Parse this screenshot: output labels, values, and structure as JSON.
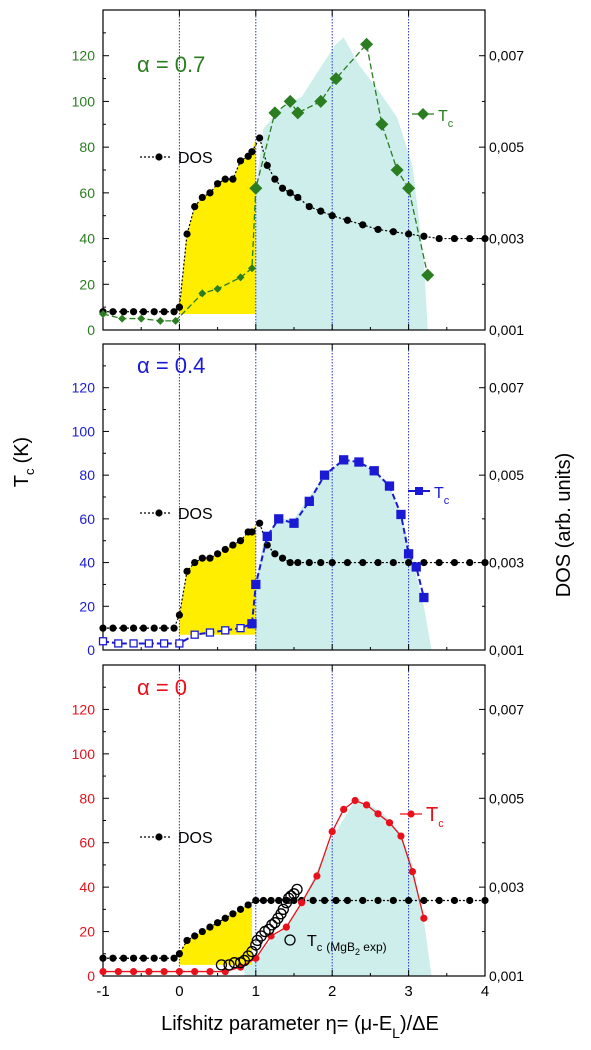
{
  "colors": {
    "yellow_fill": "#ffee00",
    "cyan_fill": "#cdeeea",
    "grid_line": "#2233cc",
    "dos": "#000000"
  },
  "figure": {
    "y_left_label": "T",
    "y_left_label_sub": "c",
    "y_left_label_unit": "(K)",
    "y_right_label": "DOS (arb. units)",
    "x_label_pre": "Lifshitz parameter η= (μ-E",
    "x_label_sub": "L",
    "x_label_post": ")/ΔE",
    "x_ticks": [
      "-1",
      "0",
      "1",
      "2",
      "3",
      "4"
    ],
    "left_ticks": [
      "0",
      "20",
      "40",
      "60",
      "80",
      "100",
      "120"
    ],
    "right_ticks": [
      "0,001",
      "0,003",
      "0,005",
      "0,007"
    ]
  },
  "chart_data": [
    {
      "type": "line",
      "panel_label": "α = 0.7",
      "accent": "#2a7d20",
      "xlim": [
        -1,
        4
      ],
      "ylim": [
        0,
        140
      ],
      "ylim_right": [
        0.001,
        0.008
      ],
      "legend_dos": "DOS",
      "legend_tc": "T",
      "legend_tc_sub": "c",
      "series": [
        {
          "name": "DOS",
          "axis": "right",
          "marker": "circle",
          "x": [
            -1,
            -0.87,
            -0.73,
            -0.6,
            -0.47,
            -0.33,
            -0.2,
            -0.07,
            0,
            0.1,
            0.2,
            0.3,
            0.4,
            0.5,
            0.6,
            0.7,
            0.8,
            0.9,
            0.95,
            1.05,
            1.15,
            1.25,
            1.35,
            1.45,
            1.55,
            1.7,
            1.85,
            2,
            2.2,
            2.4,
            2.6,
            2.8,
            3,
            3.2,
            3.4,
            3.6,
            3.8,
            4
          ],
          "y": [
            0.0014,
            0.0014,
            0.0014,
            0.0014,
            0.0014,
            0.0014,
            0.0014,
            0.0014,
            0.0015,
            0.0031,
            0.0037,
            0.0039,
            0.004,
            0.0042,
            0.0043,
            0.0043,
            0.0047,
            0.0048,
            0.0049,
            0.0052,
            0.0046,
            0.0043,
            0.0041,
            0.004,
            0.0039,
            0.0037,
            0.0036,
            0.0035,
            0.0034,
            0.0033,
            0.0032,
            0.00315,
            0.0031,
            0.00305,
            0.003,
            0.003,
            0.003,
            0.003
          ]
        },
        {
          "name": "T",
          "axis": "left",
          "marker": "diamond",
          "x": [
            -1,
            -0.75,
            -0.5,
            -0.25,
            -0.05,
            0.3,
            0.5,
            0.8,
            0.95,
            1,
            1.25,
            1.45,
            1.55,
            1.85,
            2.05,
            2.45,
            2.65,
            2.85,
            3,
            3.25
          ],
          "y": [
            7,
            5,
            5,
            4,
            4,
            16,
            18,
            23,
            27,
            62,
            95,
            100,
            95,
            100,
            110,
            125,
            90,
            70,
            62,
            24
          ]
        }
      ],
      "tc_fill": {
        "x": [
          1,
          1.1,
          1.35,
          1.6,
          1.85,
          2.05,
          2.15,
          2.35,
          2.6,
          2.85,
          3.05,
          3.2,
          3.25
        ],
        "y": [
          62,
          88,
          98,
          102,
          115,
          125,
          128,
          116,
          105,
          93,
          72,
          30,
          0
        ]
      },
      "dos_fill_top": {
        "x": [
          0,
          0.1,
          0.2,
          0.3,
          0.4,
          0.5,
          0.6,
          0.7,
          0.8,
          0.9,
          0.95,
          1
        ],
        "y": [
          0.0015,
          0.0031,
          0.0037,
          0.0039,
          0.004,
          0.0042,
          0.0043,
          0.0043,
          0.0047,
          0.0048,
          0.0049,
          0.0052
        ]
      }
    },
    {
      "type": "line",
      "panel_label": "α = 0.4",
      "accent": "#1a1ad4",
      "xlim": [
        -1,
        4
      ],
      "ylim": [
        0,
        140
      ],
      "ylim_right": [
        0.001,
        0.008
      ],
      "legend_dos": "DOS",
      "legend_tc": "T",
      "legend_tc_sub": "c",
      "series": [
        {
          "name": "DOS",
          "axis": "right",
          "marker": "circle",
          "x": [
            -1,
            -0.87,
            -0.73,
            -0.6,
            -0.47,
            -0.33,
            -0.2,
            -0.07,
            0,
            0.1,
            0.2,
            0.3,
            0.4,
            0.5,
            0.6,
            0.7,
            0.8,
            0.9,
            0.95,
            1.05,
            1.15,
            1.25,
            1.35,
            1.45,
            1.55,
            1.7,
            1.85,
            2,
            2.2,
            2.4,
            2.6,
            2.8,
            3,
            3.2,
            3.4,
            3.6,
            3.8,
            4
          ],
          "y": [
            0.0015,
            0.0015,
            0.0015,
            0.0015,
            0.0015,
            0.0015,
            0.0015,
            0.0015,
            0.0018,
            0.0028,
            0.003,
            0.0031,
            0.0031,
            0.0032,
            0.0033,
            0.0034,
            0.0035,
            0.0037,
            0.0037,
            0.0039,
            0.0034,
            0.0032,
            0.0031,
            0.003,
            0.003,
            0.003,
            0.003,
            0.003,
            0.003,
            0.003,
            0.003,
            0.003,
            0.003,
            0.003,
            0.003,
            0.003,
            0.003,
            0.003
          ]
        },
        {
          "name": "T",
          "axis": "left",
          "marker": "square",
          "x": [
            -1,
            -0.8,
            -0.6,
            -0.4,
            -0.2,
            0,
            0.2,
            0.4,
            0.6,
            0.8,
            0.95,
            1,
            1.15,
            1.3,
            1.5,
            1.7,
            1.9,
            2.15,
            2.35,
            2.55,
            2.75,
            2.9,
            3,
            3.1,
            3.2
          ],
          "y": [
            4,
            3,
            3,
            3,
            3,
            3,
            7,
            8,
            9,
            10,
            12,
            30,
            52,
            60,
            58,
            68,
            80,
            87,
            86,
            82,
            75,
            62,
            44,
            38,
            24
          ]
        }
      ],
      "tc_fill": {
        "x": [
          1,
          1.1,
          1.3,
          1.5,
          1.7,
          1.9,
          2.15,
          2.35,
          2.55,
          2.75,
          2.9,
          3.05,
          3.2,
          3.3
        ],
        "y": [
          30,
          50,
          60,
          60,
          70,
          80,
          87,
          86,
          82,
          75,
          62,
          42,
          20,
          0
        ]
      },
      "dos_fill_top": {
        "x": [
          0,
          0.1,
          0.2,
          0.3,
          0.4,
          0.5,
          0.6,
          0.7,
          0.8,
          0.9,
          0.95,
          1
        ],
        "y": [
          0.0018,
          0.0028,
          0.003,
          0.0031,
          0.0031,
          0.0032,
          0.0033,
          0.0034,
          0.0035,
          0.0037,
          0.0037,
          0.0039
        ]
      }
    },
    {
      "type": "line",
      "panel_label": "α = 0",
      "accent": "#e8101a",
      "xlim": [
        -1,
        4
      ],
      "ylim": [
        0,
        140
      ],
      "ylim_right": [
        0.001,
        0.008
      ],
      "legend_dos": "DOS",
      "legend_tc": "T",
      "legend_tc_sub": "c",
      "legend_exp": "T",
      "legend_exp_sub": "c",
      "legend_exp_note": "(MgB",
      "legend_exp_note_sub": "2",
      "legend_exp_note_post": " exp)",
      "series": [
        {
          "name": "DOS",
          "axis": "right",
          "marker": "circle",
          "x": [
            -1,
            -0.87,
            -0.73,
            -0.6,
            -0.47,
            -0.33,
            -0.2,
            -0.07,
            0,
            0.1,
            0.2,
            0.3,
            0.4,
            0.5,
            0.6,
            0.7,
            0.8,
            0.9,
            1,
            1.1,
            1.2,
            1.3,
            1.4,
            1.5,
            1.6,
            1.75,
            1.9,
            2.05,
            2.2,
            2.4,
            2.6,
            2.8,
            3,
            3.2,
            3.4,
            3.6,
            3.8,
            4
          ],
          "y": [
            0.0014,
            0.0014,
            0.0014,
            0.0014,
            0.0014,
            0.0014,
            0.0014,
            0.0014,
            0.0015,
            0.0018,
            0.0019,
            0.002,
            0.0021,
            0.0022,
            0.0023,
            0.0024,
            0.0025,
            0.0026,
            0.0027,
            0.0027,
            0.0027,
            0.0027,
            0.0027,
            0.0027,
            0.0027,
            0.0027,
            0.0027,
            0.0027,
            0.0027,
            0.0027,
            0.0027,
            0.0027,
            0.0027,
            0.0027,
            0.0027,
            0.0027,
            0.0027,
            0.0027
          ]
        },
        {
          "name": "T",
          "axis": "left",
          "marker": "circle",
          "x": [
            -1,
            -0.8,
            -0.6,
            -0.4,
            -0.2,
            0,
            0.2,
            0.4,
            0.6,
            0.8,
            1,
            1.2,
            1.4,
            1.6,
            1.8,
            2,
            2.15,
            2.3,
            2.45,
            2.6,
            2.75,
            2.9,
            3.05,
            3.2
          ],
          "y": [
            2,
            2,
            2,
            2,
            2,
            2,
            2,
            2,
            2,
            4,
            8,
            18,
            22,
            33,
            45,
            65,
            75,
            79,
            77,
            73,
            69,
            63,
            47,
            26
          ]
        },
        {
          "name": "T (MgB2 exp)",
          "axis": "left",
          "marker": "open-circle",
          "x": [
            0.55,
            0.65,
            0.72,
            0.8,
            0.85,
            0.9,
            0.95,
            1,
            1.02,
            1.07,
            1.12,
            1.17,
            1.21,
            1.25,
            1.29,
            1.33,
            1.36,
            1.4,
            1.43,
            1.46,
            1.5,
            1.54
          ],
          "y": [
            5,
            5,
            6,
            6,
            7,
            9,
            11,
            14,
            16,
            18,
            20,
            21,
            23,
            24,
            26,
            28,
            30,
            33,
            35,
            36,
            37,
            39
          ]
        }
      ],
      "tc_fill": {
        "x": [
          0.85,
          1,
          1.2,
          1.45,
          1.7,
          1.9,
          2.1,
          2.3,
          2.5,
          2.7,
          2.9,
          3.05,
          3.2,
          3.3
        ],
        "y": [
          6,
          8,
          16,
          24,
          40,
          55,
          68,
          79,
          77,
          72,
          64,
          50,
          25,
          0
        ]
      },
      "dos_fill_top": {
        "x": [
          0,
          0.1,
          0.2,
          0.3,
          0.4,
          0.5,
          0.6,
          0.7,
          0.8,
          0.9,
          0.95
        ],
        "y": [
          0.0015,
          0.0018,
          0.0019,
          0.002,
          0.0021,
          0.0022,
          0.0023,
          0.0024,
          0.0025,
          0.0026,
          0.0026
        ]
      }
    }
  ]
}
